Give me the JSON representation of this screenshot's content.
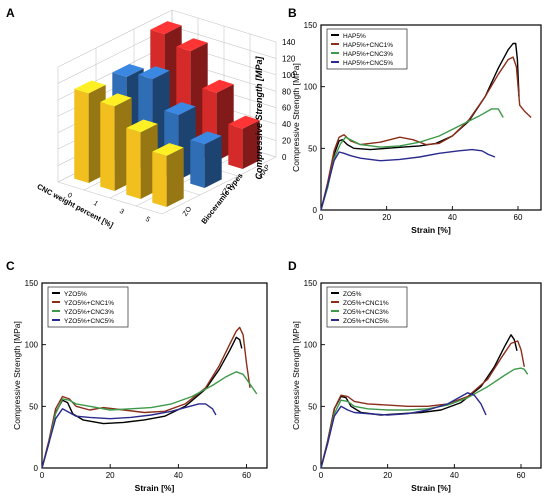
{
  "panel_labels": [
    "A",
    "B",
    "C",
    "D"
  ],
  "chart_data": [
    {
      "panel": "A",
      "type": "bar",
      "zlabel": "Compressive Strength [MPa]",
      "zticks": [
        0,
        20,
        40,
        60,
        80,
        100,
        120,
        140
      ],
      "zlim": [
        0,
        140
      ],
      "xlabel": "CNC weight percent [%]",
      "ylabel": "Bioceramic types",
      "x_categories": [
        "0",
        "1",
        "3",
        "5"
      ],
      "y_categories": [
        "ZO",
        "YZO",
        "HAP"
      ],
      "series": [
        {
          "name": "HAP",
          "values": [
            135,
            124,
            83,
            49
          ]
        },
        {
          "name": "YZO",
          "values": [
            106,
            113,
            79,
            53
          ]
        },
        {
          "name": "ZO",
          "values": [
            109,
            103,
            81,
            62
          ]
        }
      ],
      "colors": {
        "HAP": "#d42a2a",
        "YZO": "#2f6db5",
        "ZO": "#f2c01e"
      }
    },
    {
      "panel": "B",
      "type": "line",
      "xlabel": "Strain [%]",
      "ylabel": "Compressive Strength [MPa]",
      "xlim": [
        0,
        67
      ],
      "ylim": [
        0,
        150
      ],
      "xticks": [
        0,
        20,
        40,
        60
      ],
      "yticks": [
        0,
        50,
        100,
        150
      ],
      "legend_position": "top-left",
      "series": [
        {
          "name": "HAP5%",
          "color": "#000000",
          "x": [
            0,
            2,
            4,
            5.5,
            6.5,
            8,
            10,
            15,
            20,
            25,
            30,
            35,
            40,
            45,
            50,
            54,
            57,
            58.5,
            59.3,
            59.8,
            60.3
          ],
          "y": [
            0,
            20,
            45,
            56,
            57,
            53,
            50,
            49,
            50,
            51,
            52,
            54,
            60,
            72,
            92,
            115,
            130,
            135,
            135,
            122,
            92
          ]
        },
        {
          "name": "HAP5%+CNC1%",
          "color": "#8b2e1a",
          "x": [
            0,
            2,
            4,
            5.5,
            7,
            9,
            12,
            18,
            24,
            28,
            32,
            36,
            40,
            45,
            50,
            54,
            57,
            58.5,
            59.5,
            60.5,
            62,
            64
          ],
          "y": [
            0,
            22,
            48,
            59,
            61,
            56,
            53,
            55,
            59,
            57,
            53,
            54,
            60,
            73,
            92,
            110,
            122,
            124,
            116,
            85,
            80,
            75
          ]
        },
        {
          "name": "HAP5%+CNC3%",
          "color": "#3e9a4a",
          "x": [
            0,
            2,
            4,
            6,
            7.5,
            9,
            12,
            18,
            24,
            30,
            36,
            42,
            48,
            52,
            54,
            55.5
          ],
          "y": [
            0,
            18,
            42,
            54,
            59,
            57,
            53,
            51,
            52,
            55,
            60,
            68,
            76,
            82,
            82,
            75
          ]
        },
        {
          "name": "HAP5%+CNC5%",
          "color": "#2a2a8f",
          "x": [
            0,
            2,
            4,
            5.5,
            7,
            9,
            12,
            18,
            24,
            30,
            36,
            42,
            46,
            49,
            51,
            53
          ],
          "y": [
            0,
            20,
            40,
            47,
            46,
            44,
            42,
            40,
            41,
            43,
            46,
            48,
            49,
            48,
            45,
            43
          ]
        }
      ]
    },
    {
      "panel": "C",
      "type": "line",
      "xlabel": "Strain [%]",
      "ylabel": "Compressive Strength [MPa]",
      "xlim": [
        0,
        66
      ],
      "ylim": [
        0,
        150
      ],
      "xticks": [
        0,
        20,
        40,
        60
      ],
      "yticks": [
        0,
        50,
        100,
        150
      ],
      "legend_position": "top-left",
      "series": [
        {
          "name": "YZO5%",
          "color": "#000000",
          "x": [
            0,
            2,
            4,
            6,
            7.5,
            9,
            12,
            18,
            24,
            30,
            36,
            42,
            48,
            52,
            55,
            57,
            58,
            58.6
          ],
          "y": [
            0,
            20,
            45,
            55,
            53,
            44,
            39,
            36,
            37,
            39,
            42,
            50,
            64,
            80,
            95,
            106,
            104,
            97
          ]
        },
        {
          "name": "YZO5%+CNC1%",
          "color": "#8b2e1a",
          "x": [
            0,
            2,
            4,
            6,
            8,
            10,
            14,
            18,
            24,
            30,
            36,
            42,
            48,
            52,
            55,
            57,
            58,
            59,
            60,
            61
          ],
          "y": [
            0,
            22,
            48,
            58,
            56,
            50,
            47,
            49,
            47,
            45,
            46,
            52,
            65,
            83,
            100,
            111,
            114,
            108,
            85,
            65
          ]
        },
        {
          "name": "YZO5%+CNC3%",
          "color": "#3e9a4a",
          "x": [
            0,
            2,
            4,
            6,
            8,
            10,
            14,
            20,
            26,
            32,
            38,
            44,
            50,
            54,
            57,
            59,
            61,
            63
          ],
          "y": [
            0,
            20,
            44,
            56,
            55,
            52,
            50,
            47,
            48,
            49,
            52,
            58,
            67,
            74,
            78,
            76,
            68,
            60
          ]
        },
        {
          "name": "YZO5%+CNC5%",
          "color": "#2a2a8f",
          "x": [
            0,
            2,
            4,
            6,
            8,
            10,
            14,
            20,
            26,
            32,
            38,
            42,
            46,
            48,
            50,
            51
          ],
          "y": [
            0,
            20,
            40,
            48,
            45,
            42,
            41,
            40,
            41,
            43,
            46,
            49,
            52,
            52,
            48,
            43
          ]
        }
      ]
    },
    {
      "panel": "D",
      "type": "line",
      "xlabel": "Strain [%]",
      "ylabel": "Compressive Strength [MPa]",
      "xlim": [
        0,
        66
      ],
      "ylim": [
        0,
        150
      ],
      "xticks": [
        0,
        20,
        40,
        60
      ],
      "yticks": [
        0,
        50,
        100,
        150
      ],
      "legend_position": "top-left",
      "series": [
        {
          "name": "ZO5%",
          "color": "#000000",
          "x": [
            0,
            2,
            4,
            6,
            7.5,
            9,
            12,
            18,
            24,
            30,
            36,
            42,
            48,
            52,
            55,
            57,
            58,
            58.8
          ],
          "y": [
            0,
            22,
            48,
            58,
            57,
            50,
            45,
            43,
            44,
            45,
            47,
            53,
            66,
            82,
            98,
            108,
            104,
            95
          ]
        },
        {
          "name": "ZO5%+CNC1%",
          "color": "#8b2e1a",
          "x": [
            0,
            2,
            4,
            6,
            8,
            10,
            14,
            20,
            26,
            32,
            38,
            44,
            50,
            54,
            57,
            59,
            60,
            61
          ],
          "y": [
            0,
            22,
            48,
            59,
            58,
            54,
            52,
            51,
            50,
            50,
            52,
            58,
            72,
            89,
            101,
            103,
            96,
            82
          ]
        },
        {
          "name": "ZO5%+CNC3%",
          "color": "#3e9a4a",
          "x": [
            0,
            2,
            4,
            6,
            8,
            10,
            14,
            20,
            26,
            32,
            38,
            44,
            50,
            55,
            58,
            60,
            61,
            62
          ],
          "y": [
            0,
            20,
            44,
            55,
            54,
            50,
            48,
            47,
            47,
            48,
            51,
            57,
            66,
            75,
            80,
            81,
            80,
            76
          ]
        },
        {
          "name": "ZO5%+CNC5%",
          "color": "#2a2a8f",
          "x": [
            0,
            2,
            4,
            6,
            8,
            10,
            14,
            20,
            26,
            32,
            38,
            42,
            44,
            46,
            48,
            49.5
          ],
          "y": [
            0,
            20,
            42,
            50,
            47,
            45,
            44,
            43,
            44,
            47,
            52,
            58,
            61,
            59,
            52,
            43
          ]
        }
      ]
    }
  ]
}
